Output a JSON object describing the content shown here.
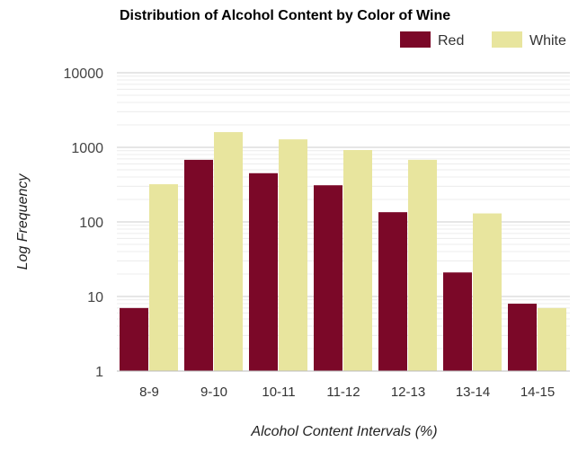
{
  "chart_data": {
    "type": "bar",
    "title": "Distribution of Alcohol Content by Color of Wine",
    "xlabel": "Alcohol Content Intervals (%)",
    "ylabel": "Log Frequency",
    "yscale": "log",
    "ylim": [
      1,
      10000
    ],
    "yticks": [
      "1",
      "10",
      "100",
      "1000",
      "10000"
    ],
    "grid": true,
    "legend_position": "top-right",
    "categories": [
      "8-9",
      "9-10",
      "10-11",
      "11-12",
      "12-13",
      "13-14",
      "14-15"
    ],
    "series": [
      {
        "name": "Red",
        "color": "#7b0828",
        "values": [
          7,
          680,
          450,
          310,
          135,
          21,
          8
        ]
      },
      {
        "name": "White",
        "color": "#e8e59e",
        "values": [
          320,
          1600,
          1280,
          920,
          680,
          130,
          7
        ]
      }
    ]
  }
}
